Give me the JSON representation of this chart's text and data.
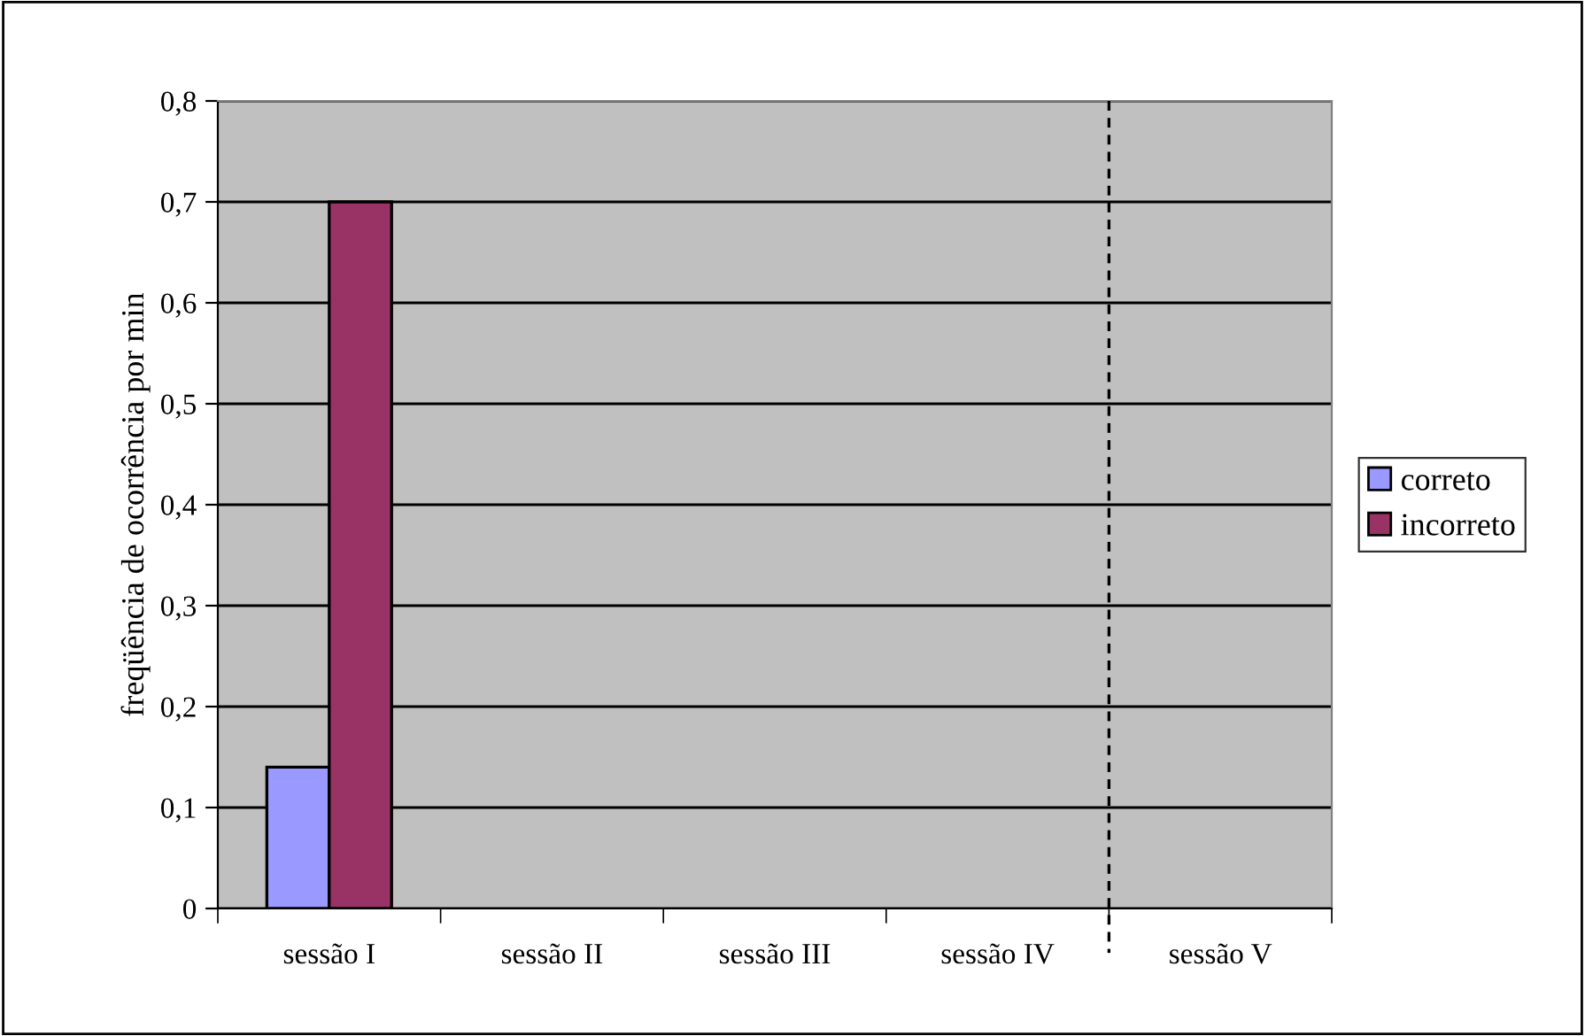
{
  "chart_data": {
    "type": "bar",
    "ylabel": "freqüência de ocorrência por min",
    "categories": [
      "sessão I",
      "sessão II",
      "sessão III",
      "sessão IV",
      "sessão V"
    ],
    "series": [
      {
        "name": "correto",
        "color": "#9999ff",
        "values": [
          0.14,
          null,
          null,
          null,
          null
        ]
      },
      {
        "name": "incorreto",
        "color": "#993366",
        "values": [
          0.7,
          null,
          null,
          null,
          null
        ]
      }
    ],
    "ylim": [
      0,
      0.8
    ],
    "yticks": [
      0,
      {
        "value": 0.1,
        "label": "0,1"
      },
      {
        "value": 0.2,
        "label": "0,2"
      },
      {
        "value": 0.3,
        "label": "0,3"
      },
      {
        "value": 0.4,
        "label": "0,4"
      },
      {
        "value": 0.5,
        "label": "0,5"
      },
      {
        "value": 0.6,
        "label": "0,6"
      },
      {
        "value": 0.7,
        "label": "0,7"
      },
      {
        "value": 0.8,
        "label": "0,8"
      }
    ],
    "grid": "y",
    "legend": "right"
  }
}
